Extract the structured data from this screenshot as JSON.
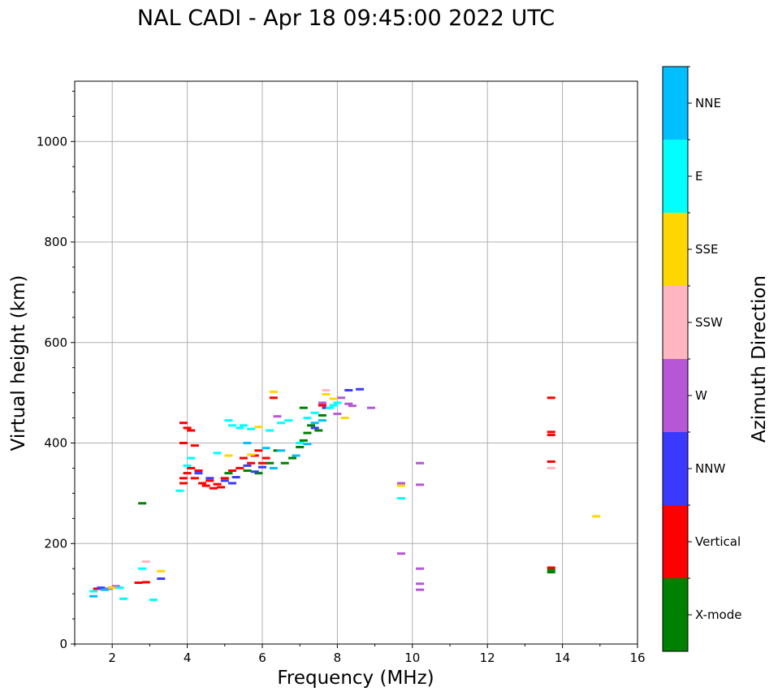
{
  "chart_data": {
    "type": "scatter",
    "title": "NAL CADI - Apr 18 09:45:00 2022 UTC",
    "xlabel": "Frequency (MHz)",
    "ylabel": "Virtual height (km)",
    "xlim": [
      1,
      16
    ],
    "ylim": [
      0,
      1120
    ],
    "x_ticks": [
      2,
      4,
      6,
      8,
      10,
      12,
      14,
      16
    ],
    "y_ticks": [
      0,
      200,
      400,
      600,
      800,
      1000
    ],
    "grid": true,
    "colorbar": {
      "label": "Azimuth Direction",
      "categories": [
        {
          "name": "X-mode",
          "color": "#008000"
        },
        {
          "name": "Vertical",
          "color": "#ff0000"
        },
        {
          "name": "NNW",
          "color": "#3a3aff"
        },
        {
          "name": "W",
          "color": "#b657d6"
        },
        {
          "name": "SSW",
          "color": "#ffb6c1"
        },
        {
          "name": "SSE",
          "color": "#ffd700"
        },
        {
          "name": "E",
          "color": "#00ffff"
        },
        {
          "name": "NNE",
          "color": "#00bfff"
        }
      ]
    },
    "series": [
      {
        "name": "X-mode",
        "points": [
          [
            5.1,
            340
          ],
          [
            5.6,
            345
          ],
          [
            5.9,
            340
          ],
          [
            6.2,
            360
          ],
          [
            6.4,
            385
          ],
          [
            6.6,
            360
          ],
          [
            6.8,
            370
          ],
          [
            7.0,
            392
          ],
          [
            7.1,
            405
          ],
          [
            7.2,
            420
          ],
          [
            7.3,
            435
          ],
          [
            7.5,
            425
          ],
          [
            7.6,
            455
          ],
          [
            7.1,
            470
          ],
          [
            2.8,
            280
          ],
          [
            13.7,
            148
          ],
          [
            13.7,
            143
          ]
        ]
      },
      {
        "name": "Vertical",
        "points": [
          [
            3.9,
            320
          ],
          [
            3.9,
            330
          ],
          [
            4.0,
            340
          ],
          [
            4.1,
            350
          ],
          [
            4.2,
            330
          ],
          [
            4.3,
            345
          ],
          [
            4.4,
            320
          ],
          [
            4.5,
            315
          ],
          [
            4.6,
            325
          ],
          [
            4.7,
            310
          ],
          [
            4.8,
            318
          ],
          [
            4.9,
            312
          ],
          [
            5.0,
            330
          ],
          [
            5.2,
            345
          ],
          [
            5.4,
            350
          ],
          [
            5.5,
            370
          ],
          [
            5.7,
            360
          ],
          [
            5.8,
            375
          ],
          [
            5.9,
            385
          ],
          [
            6.0,
            360
          ],
          [
            6.1,
            370
          ],
          [
            4.0,
            430
          ],
          [
            4.1,
            425
          ],
          [
            3.9,
            440
          ],
          [
            4.2,
            395
          ],
          [
            3.9,
            400
          ],
          [
            2.7,
            122
          ],
          [
            2.9,
            123
          ],
          [
            1.6,
            110
          ],
          [
            2.0,
            112
          ],
          [
            6.3,
            490
          ],
          [
            7.6,
            475
          ],
          [
            13.7,
            490
          ],
          [
            13.7,
            422
          ],
          [
            13.7,
            416
          ],
          [
            13.7,
            363
          ],
          [
            13.7,
            152
          ]
        ]
      },
      {
        "name": "NNW",
        "points": [
          [
            4.3,
            340
          ],
          [
            4.6,
            330
          ],
          [
            5.0,
            325
          ],
          [
            5.2,
            320
          ],
          [
            5.3,
            332
          ],
          [
            5.6,
            355
          ],
          [
            5.8,
            343
          ],
          [
            6.0,
            352
          ],
          [
            7.4,
            430
          ],
          [
            7.7,
            470
          ],
          [
            8.3,
            505
          ],
          [
            8.6,
            507
          ],
          [
            3.3,
            130
          ],
          [
            1.7,
            112
          ]
        ]
      },
      {
        "name": "W",
        "points": [
          [
            8.1,
            490
          ],
          [
            8.3,
            478
          ],
          [
            8.4,
            474
          ],
          [
            8.9,
            470
          ],
          [
            7.6,
            480
          ],
          [
            8.0,
            458
          ],
          [
            6.4,
            453
          ],
          [
            9.7,
            320
          ],
          [
            10.2,
            360
          ],
          [
            10.2,
            317
          ],
          [
            9.7,
            180
          ],
          [
            10.2,
            150
          ],
          [
            10.2,
            120
          ],
          [
            10.2,
            108
          ],
          [
            2.1,
            115
          ],
          [
            1.9,
            110
          ]
        ]
      },
      {
        "name": "SSW",
        "points": [
          [
            2.9,
            164
          ],
          [
            13.7,
            350
          ],
          [
            7.7,
            505
          ]
        ]
      },
      {
        "name": "SSE",
        "points": [
          [
            7.7,
            497
          ],
          [
            7.9,
            488
          ],
          [
            8.2,
            450
          ],
          [
            6.3,
            502
          ],
          [
            5.7,
            377
          ],
          [
            5.9,
            432
          ],
          [
            9.7,
            315
          ],
          [
            14.9,
            254
          ],
          [
            3.3,
            145
          ],
          [
            2.0,
            112
          ],
          [
            5.1,
            375
          ]
        ]
      },
      {
        "name": "E",
        "points": [
          [
            5.2,
            435
          ],
          [
            5.4,
            430
          ],
          [
            5.5,
            435
          ],
          [
            5.7,
            428
          ],
          [
            5.1,
            445
          ],
          [
            4.8,
            380
          ],
          [
            6.2,
            425
          ],
          [
            6.5,
            440
          ],
          [
            6.7,
            445
          ],
          [
            7.2,
            450
          ],
          [
            7.4,
            460
          ],
          [
            7.8,
            470
          ],
          [
            7.9,
            475
          ],
          [
            8.0,
            480
          ],
          [
            7.0,
            400
          ],
          [
            4.1,
            370
          ],
          [
            4.0,
            355
          ],
          [
            3.8,
            305
          ],
          [
            9.7,
            290
          ],
          [
            3.1,
            88
          ],
          [
            2.8,
            150
          ],
          [
            1.5,
            105
          ],
          [
            2.3,
            90
          ],
          [
            2.2,
            112
          ]
        ]
      },
      {
        "name": "NNE",
        "points": [
          [
            5.6,
            400
          ],
          [
            6.1,
            390
          ],
          [
            6.3,
            350
          ],
          [
            6.5,
            385
          ],
          [
            6.9,
            375
          ],
          [
            7.2,
            398
          ],
          [
            7.4,
            440
          ],
          [
            7.6,
            445
          ],
          [
            1.5,
            95
          ],
          [
            1.8,
            108
          ]
        ]
      }
    ]
  }
}
